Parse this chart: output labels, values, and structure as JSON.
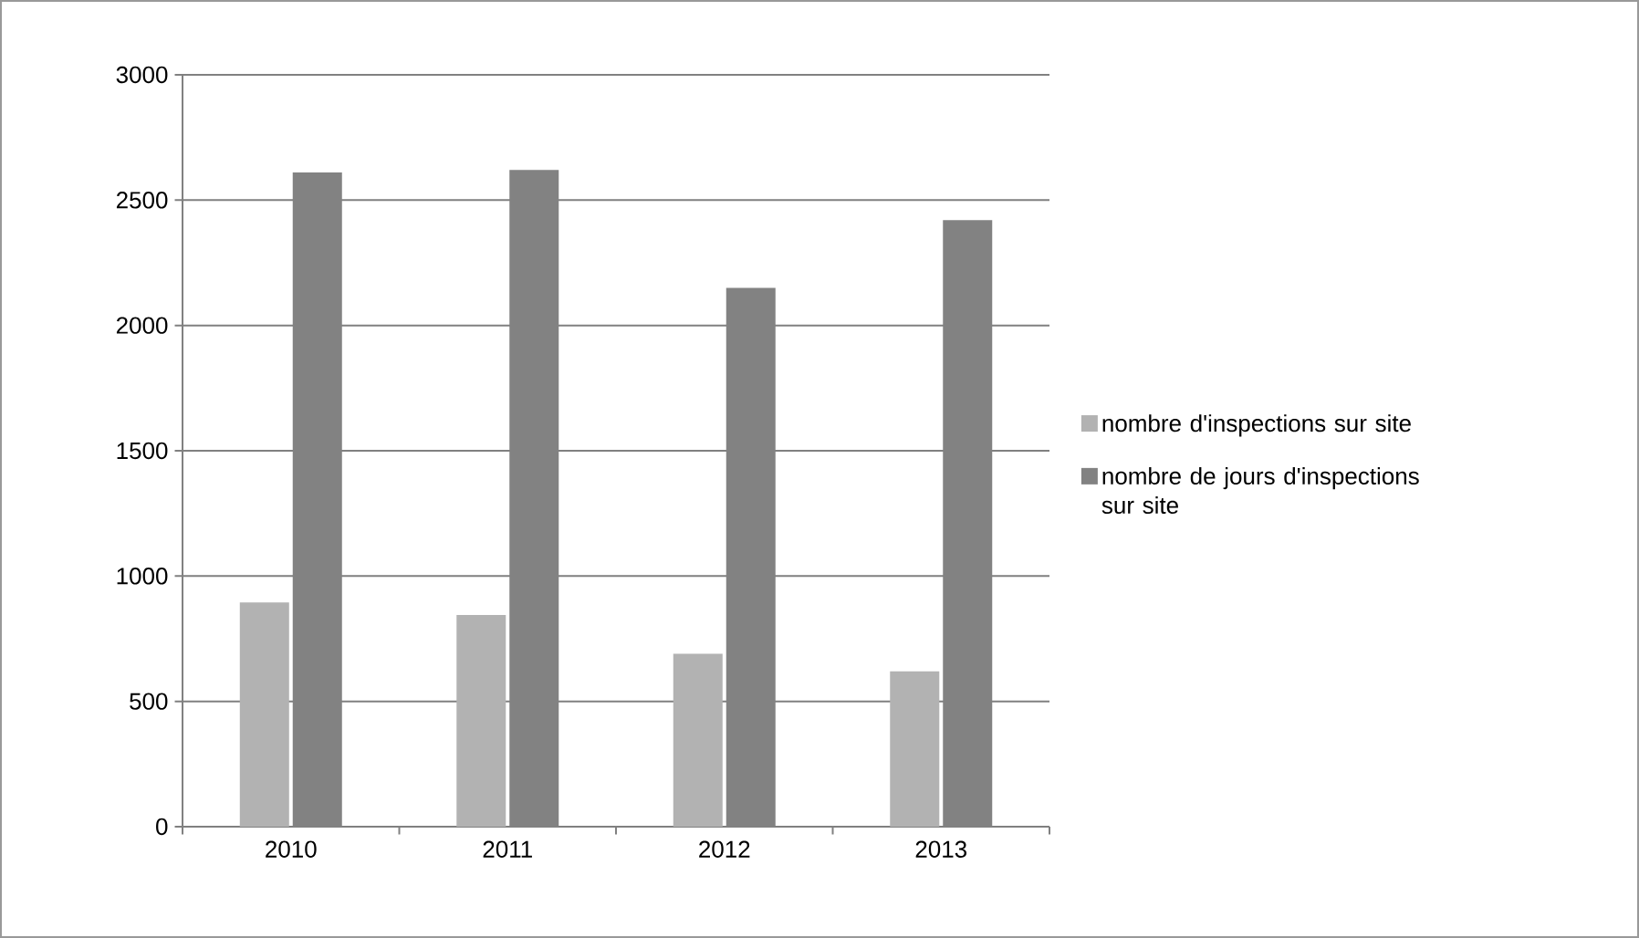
{
  "chart_data": {
    "type": "bar",
    "categories": [
      "2010",
      "2011",
      "2012",
      "2013"
    ],
    "series": [
      {
        "name": "nombre d'inspections sur site",
        "color": "#b2b2b2",
        "values": [
          895,
          845,
          690,
          620
        ]
      },
      {
        "name": "nombre de jours d'inspections sur site",
        "color": "#828282",
        "values": [
          2610,
          2620,
          2150,
          2420
        ]
      }
    ],
    "ylim": [
      0,
      3000
    ],
    "yticks": [
      0,
      500,
      1000,
      1500,
      2000,
      2500,
      3000
    ],
    "grid": "y",
    "legend": "right"
  }
}
